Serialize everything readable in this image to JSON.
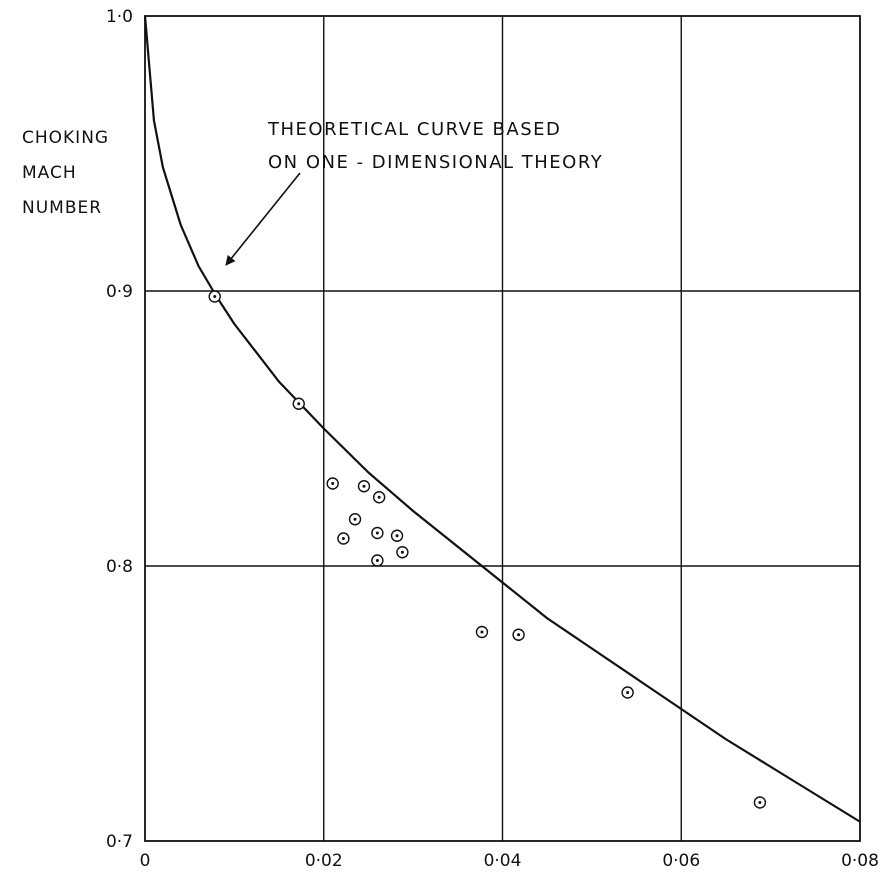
{
  "chart_data": {
    "type": "scatter",
    "title": "",
    "xlabel": "",
    "ylabel_lines": [
      "CHOKING",
      "MACH",
      "NUMBER"
    ],
    "xlim": [
      0,
      0.08
    ],
    "ylim": [
      0.7,
      1.0
    ],
    "x_ticks": [
      0,
      0.02,
      0.04,
      0.06,
      0.08
    ],
    "x_tick_labels": [
      "0",
      "0·02",
      "0·04",
      "0·06",
      "0·08"
    ],
    "y_ticks": [
      0.7,
      0.8,
      0.9,
      1.0
    ],
    "y_tick_labels": [
      "0·7",
      "0·8",
      "0·9",
      "1·0"
    ],
    "grid": true,
    "series": [
      {
        "kind": "line",
        "x": [
          0,
          0.001,
          0.002,
          0.004,
          0.006,
          0.008,
          0.01,
          0.015,
          0.02,
          0.025,
          0.03,
          0.035,
          0.04,
          0.045,
          0.05,
          0.055,
          0.06,
          0.065,
          0.07,
          0.075,
          0.08
        ],
        "y": [
          1.0,
          0.962,
          0.945,
          0.924,
          0.909,
          0.898,
          0.888,
          0.867,
          0.85,
          0.834,
          0.82,
          0.807,
          0.794,
          0.781,
          0.77,
          0.759,
          0.748,
          0.737,
          0.727,
          0.717,
          0.707
        ]
      },
      {
        "kind": "points",
        "x": [
          0.0078,
          0.0172,
          0.021,
          0.0222,
          0.0235,
          0.0245,
          0.026,
          0.026,
          0.0262,
          0.0282,
          0.0288,
          0.0377,
          0.0418,
          0.054,
          0.0688
        ],
        "y": [
          0.898,
          0.859,
          0.83,
          0.81,
          0.817,
          0.829,
          0.812,
          0.802,
          0.825,
          0.811,
          0.805,
          0.776,
          0.775,
          0.754,
          0.714
        ]
      }
    ],
    "annotation": {
      "lines": [
        "THEORETICAL CURVE BASED",
        "ON ONE - DIMENSIONAL THEORY"
      ],
      "points_to": [
        0.0085,
        0.908
      ]
    }
  }
}
